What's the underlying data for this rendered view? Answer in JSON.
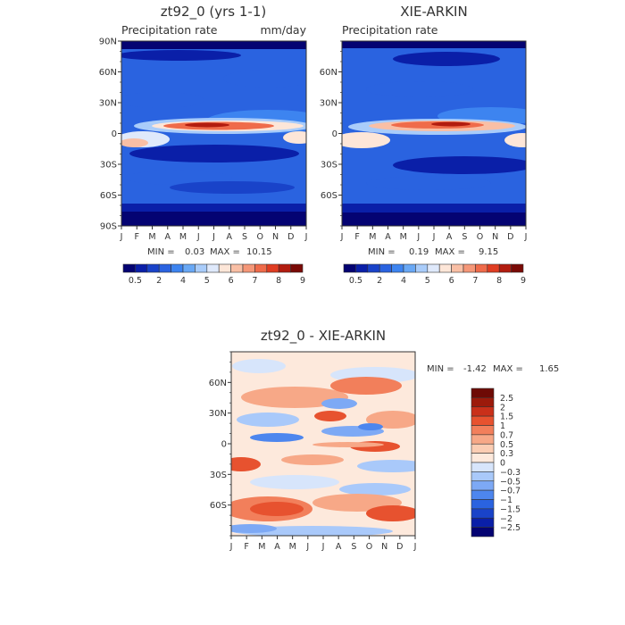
{
  "colors": {
    "abs_scale": [
      "#040372",
      "#0a1fa8",
      "#1943c9",
      "#2a63e0",
      "#3d84f0",
      "#69a8f5",
      "#a9ccfa",
      "#dfe9fb",
      "#fde6d8",
      "#f9bfa5",
      "#f59778",
      "#ef6b4a",
      "#e03d22",
      "#b21c0f",
      "#7a0a06"
    ],
    "diff_scale": [
      "#040372",
      "#0a1fa8",
      "#1943c9",
      "#2a63e0",
      "#4d86ee",
      "#7da9f5",
      "#a9c9fa",
      "#d7e5fb",
      "#fde9dc",
      "#fbcdb3",
      "#f7a887",
      "#f27f5b",
      "#e7522f",
      "#c9301a",
      "#9c1a0b",
      "#6e0a05"
    ]
  },
  "panels": [
    {
      "id": "model",
      "title": "zt92_0 (yrs 1-1)",
      "variable": "Precipitation rate",
      "units": "mm/day",
      "stats": {
        "min_label": "MIN =",
        "min": "0.03",
        "max_label": "MAX =",
        "max": "10.15"
      }
    },
    {
      "id": "obs",
      "title": "XIE-ARKIN",
      "variable": "Precipitation rate",
      "units": "",
      "stats": {
        "min_label": "MIN =",
        "min": "0.19",
        "max_label": "MAX =",
        "max": "9.15"
      }
    },
    {
      "id": "diff",
      "title": "zt92_0 - XIE-ARKIN",
      "variable": "",
      "units": "",
      "stats": {
        "min_label": "MIN =",
        "min": "-1.42",
        "max_label": "MAX =",
        "max": "1.65"
      }
    }
  ],
  "chart_data": [
    {
      "type": "heatmap",
      "title": "zt92_0 (yrs 1-1)",
      "subtitle": "Precipitation rate",
      "units": "mm/day",
      "x": {
        "ticks": [
          "J",
          "F",
          "M",
          "A",
          "M",
          "J",
          "J",
          "A",
          "S",
          "O",
          "N",
          "D",
          "J"
        ]
      },
      "y": {
        "ticks": [
          "90N",
          "60N",
          "30N",
          "0",
          "30S",
          "60S",
          "90S"
        ],
        "range": [
          -90,
          90
        ]
      },
      "levels": [
        0.5,
        1,
        2,
        3,
        4,
        5,
        6,
        7,
        8,
        9
      ],
      "colorbar_labels": [
        "0.5",
        "2",
        "4",
        "5",
        "6",
        "7",
        "8",
        "9"
      ],
      "features": {
        "itcz_max_lat_range": [
          2,
          10
        ],
        "max_value": 10.15,
        "min_value": 0.03
      },
      "min": 0.03,
      "max": 10.15
    },
    {
      "type": "heatmap",
      "title": "XIE-ARKIN",
      "subtitle": "Precipitation rate",
      "x": {
        "ticks": [
          "J",
          "F",
          "M",
          "A",
          "M",
          "J",
          "J",
          "A",
          "S",
          "O",
          "N",
          "D",
          "J"
        ]
      },
      "y": {
        "ticks": [
          "60N",
          "30N",
          "0",
          "30S",
          "60S"
        ],
        "range": [
          -90,
          90
        ]
      },
      "levels": [
        0.5,
        1,
        2,
        3,
        4,
        5,
        6,
        7,
        8,
        9
      ],
      "colorbar_labels": [
        "0.5",
        "2",
        "4",
        "5",
        "6",
        "7",
        "8",
        "9"
      ],
      "min": 0.19,
      "max": 9.15
    },
    {
      "type": "heatmap",
      "title": "zt92_0 - XIE-ARKIN",
      "x": {
        "ticks": [
          "J",
          "F",
          "M",
          "A",
          "M",
          "J",
          "J",
          "A",
          "S",
          "O",
          "N",
          "D",
          "J"
        ]
      },
      "y": {
        "ticks": [
          "60N",
          "30N",
          "0",
          "30S",
          "60S"
        ],
        "range": [
          -90,
          90
        ]
      },
      "levels": [
        -2.5,
        -2,
        -1.5,
        -1,
        -0.7,
        -0.5,
        -0.3,
        0,
        0.3,
        0.5,
        0.7,
        1,
        1.5,
        2,
        2.5
      ],
      "colorbar_labels": [
        "2.5",
        "2",
        "1.5",
        "1",
        "0.7",
        "0.5",
        "0.3",
        "0",
        "−0.3",
        "−0.5",
        "−0.7",
        "−1",
        "−1.5",
        "−2",
        "−2.5"
      ],
      "min": -1.42,
      "max": 1.65
    }
  ]
}
